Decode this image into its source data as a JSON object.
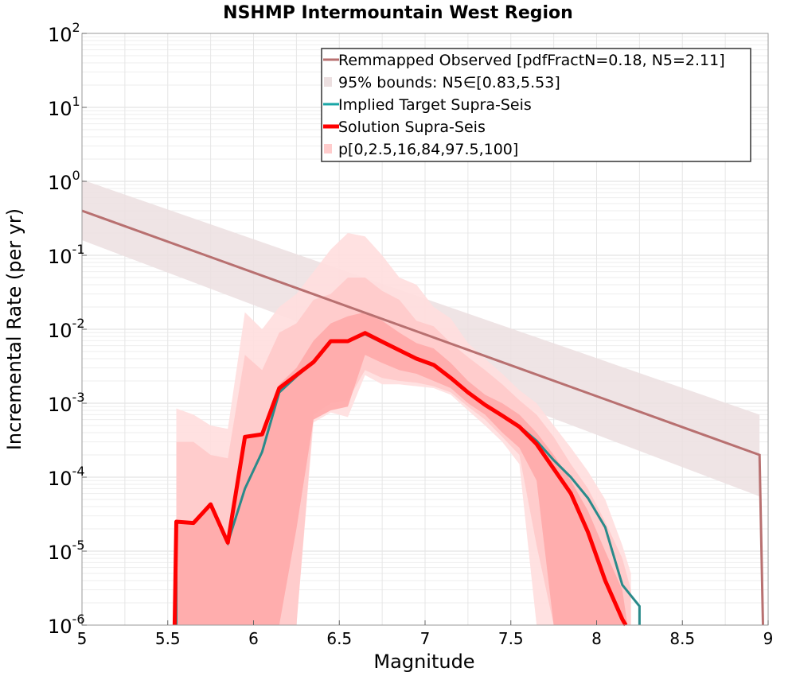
{
  "chart_data": {
    "type": "line",
    "title": "NSHMP Intermountain West Region",
    "xlabel": "Magnitude",
    "ylabel": "Incremental Rate (per yr)",
    "xlim": [
      5,
      9
    ],
    "ylim": [
      1e-06,
      100
    ],
    "y_scale": "log",
    "grid": true,
    "legend_position": "top-right",
    "x_ticks": [
      "5",
      "5.5",
      "6",
      "6.5",
      "7",
      "7.5",
      "8",
      "8.5",
      "9"
    ],
    "y_ticks": [
      {
        "base": "10",
        "exp": "2",
        "value": 100
      },
      {
        "base": "10",
        "exp": "1",
        "value": 10
      },
      {
        "base": "10",
        "exp": "0",
        "value": 1
      },
      {
        "base": "10",
        "exp": "-1",
        "value": 0.1
      },
      {
        "base": "10",
        "exp": "-2",
        "value": 0.01
      },
      {
        "base": "10",
        "exp": "-3",
        "value": 0.001
      },
      {
        "base": "10",
        "exp": "-4",
        "value": 0.0001
      },
      {
        "base": "10",
        "exp": "-5",
        "value": 1e-05
      },
      {
        "base": "10",
        "exp": "-6",
        "value": 1e-06
      }
    ],
    "legend": [
      {
        "label": "Remmapped Observed [pdfFractN=0.18, N5=2.11]",
        "color": "#b87070",
        "kind": "line"
      },
      {
        "label": "95% bounds: N5∈[0.83,5.53]",
        "color": "#ecdfe0",
        "kind": "patch"
      },
      {
        "label": "Implied Target Supra-Seis",
        "color": "#1aa6a6",
        "kind": "line"
      },
      {
        "label": "Solution Supra-Seis",
        "color": "#ff0000",
        "kind": "thick-line"
      },
      {
        "label": "p[0,2.5,16,84,97.5,100]",
        "color": "#ffcccc",
        "kind": "patch"
      }
    ],
    "observed": {
      "x": [
        5.0,
        8.95,
        8.97
      ],
      "y": [
        0.4,
        0.0002,
        1e-06
      ],
      "color": "#b87070"
    },
    "observed_bounds": {
      "x": [
        5.0,
        8.95
      ],
      "lower": [
        0.16,
        5.5e-05
      ],
      "upper": [
        1.05,
        0.0007
      ],
      "color": "#ecdfe0"
    },
    "implied_target": {
      "x": [
        5.55,
        5.55,
        5.65,
        5.75,
        5.85,
        5.95,
        6.05,
        6.15,
        6.25,
        6.35,
        6.45,
        6.55,
        6.65,
        6.75,
        6.85,
        6.95,
        7.05,
        7.15,
        7.25,
        7.35,
        7.45,
        7.55,
        7.65,
        7.75,
        7.85,
        7.95,
        8.05,
        8.15,
        8.25,
        8.25
      ],
      "y": [
        1e-06,
        2.5e-05,
        2.4e-05,
        4.2e-05,
        1.3e-05,
        7e-05,
        0.00022,
        0.0014,
        0.0023,
        0.0036,
        0.0069,
        0.0068,
        0.0086,
        0.0066,
        0.0051,
        0.0039,
        0.0032,
        0.0022,
        0.0014,
        0.00095,
        0.00068,
        0.00049,
        0.00031,
        0.00017,
        0.0001,
        5.2e-05,
        2.1e-05,
        3.5e-06,
        1.8e-06,
        1e-06
      ],
      "color": "#2a8a8a"
    },
    "solution": {
      "x": [
        5.54,
        5.55,
        5.65,
        5.75,
        5.85,
        5.95,
        6.05,
        6.15,
        6.25,
        6.35,
        6.45,
        6.55,
        6.65,
        6.75,
        6.85,
        6.95,
        7.05,
        7.15,
        7.25,
        7.35,
        7.45,
        7.55,
        7.65,
        7.75,
        7.85,
        7.95,
        8.05,
        8.15,
        8.17
      ],
      "y": [
        1e-06,
        2.5e-05,
        2.4e-05,
        4.3e-05,
        1.3e-05,
        0.00035,
        0.00038,
        0.0016,
        0.0024,
        0.0036,
        0.0069,
        0.0069,
        0.0089,
        0.0068,
        0.0052,
        0.004,
        0.0033,
        0.0022,
        0.0014,
        0.00095,
        0.00068,
        0.00048,
        0.00028,
        0.00013,
        6e-05,
        1.8e-05,
        4e-06,
        1.2e-06,
        1e-06
      ],
      "color": "#ff0000"
    },
    "percentile_bands": [
      {
        "name": "p0-100",
        "color": "#ffdede",
        "x": [
          5.55,
          5.65,
          5.75,
          5.85,
          5.95,
          6.05,
          6.15,
          6.25,
          6.35,
          6.45,
          6.55,
          6.65,
          6.75,
          6.85,
          6.95,
          7.05,
          7.15,
          7.25,
          7.35,
          7.45,
          7.55,
          7.65,
          7.75,
          7.85,
          7.95,
          8.05,
          8.15,
          8.2
        ],
        "lower": [
          1e-06,
          1e-06,
          1e-06,
          1e-06,
          1e-06,
          1e-06,
          1e-06,
          1e-06,
          0.00055,
          0.00075,
          0.00065,
          0.0024,
          0.0018,
          0.0018,
          0.0017,
          0.0016,
          0.0013,
          0.0008,
          0.0005,
          0.0003,
          0.00015,
          1e-06,
          1e-06,
          1e-06,
          1e-06,
          1e-06,
          1e-06,
          1e-06
        ],
        "upper": [
          0.00085,
          0.0007,
          0.0005,
          0.00045,
          0.017,
          0.01,
          0.02,
          0.03,
          0.06,
          0.12,
          0.2,
          0.18,
          0.1,
          0.05,
          0.04,
          0.02,
          0.014,
          0.0065,
          0.004,
          0.0025,
          0.0015,
          0.001,
          0.0005,
          0.00025,
          0.00012,
          5e-05,
          1.2e-05,
          5e-06
        ]
      },
      {
        "name": "p2.5-97.5",
        "color": "#ffcaca",
        "x": [
          5.55,
          5.65,
          5.75,
          5.85,
          5.95,
          6.05,
          6.15,
          6.25,
          6.35,
          6.45,
          6.55,
          6.65,
          6.75,
          6.85,
          6.95,
          7.05,
          7.15,
          7.25,
          7.35,
          7.45,
          7.55,
          7.65,
          7.75,
          7.85,
          7.95,
          8.05,
          8.15,
          8.2
        ],
        "lower": [
          1e-06,
          1e-06,
          1e-06,
          1e-06,
          1e-06,
          1e-06,
          1e-06,
          1e-06,
          0.0007,
          0.001,
          0.0011,
          0.0028,
          0.0022,
          0.002,
          0.0019,
          0.0017,
          0.0014,
          0.0009,
          0.0006,
          0.00035,
          0.0002,
          1.2e-05,
          1e-06,
          1e-06,
          1e-06,
          1e-06,
          1e-06,
          1e-06
        ],
        "upper": [
          0.0003,
          0.0003,
          0.0002,
          0.00018,
          0.0045,
          0.0028,
          0.009,
          0.012,
          0.025,
          0.03,
          0.05,
          0.05,
          0.033,
          0.025,
          0.013,
          0.011,
          0.0065,
          0.0042,
          0.0028,
          0.0018,
          0.0011,
          0.0007,
          0.00035,
          0.00015,
          7e-05,
          2.5e-05,
          8e-06,
          3e-06
        ]
      },
      {
        "name": "p16-84",
        "color": "#ffaaaa",
        "x": [
          5.55,
          5.65,
          5.75,
          5.85,
          5.95,
          6.05,
          6.15,
          6.25,
          6.35,
          6.45,
          6.55,
          6.65,
          6.75,
          6.85,
          6.95,
          7.05,
          7.15,
          7.25,
          7.35,
          7.45,
          7.55,
          7.65,
          7.75,
          7.85,
          7.95,
          8.05,
          8.15,
          8.18
        ],
        "lower": [
          1e-06,
          1e-06,
          1e-06,
          1e-06,
          1e-06,
          1e-06,
          1e-06,
          2e-05,
          0.0006,
          0.0008,
          0.0009,
          0.0045,
          0.0035,
          0.0028,
          0.0025,
          0.002,
          0.0016,
          0.001,
          0.0007,
          0.0004,
          0.00025,
          9e-05,
          1e-06,
          1e-06,
          1e-06,
          1e-06,
          1e-06,
          1e-06
        ],
        "upper": [
          2.5e-05,
          2.4e-05,
          4.3e-05,
          1.3e-05,
          0.00035,
          0.00038,
          0.0018,
          0.003,
          0.007,
          0.012,
          0.015,
          0.017,
          0.013,
          0.009,
          0.0065,
          0.0055,
          0.0035,
          0.002,
          0.0013,
          0.001,
          0.0007,
          0.0004,
          0.0002,
          9e-05,
          3.5e-05,
          1e-05,
          3e-06,
          1e-06
        ]
      }
    ]
  }
}
